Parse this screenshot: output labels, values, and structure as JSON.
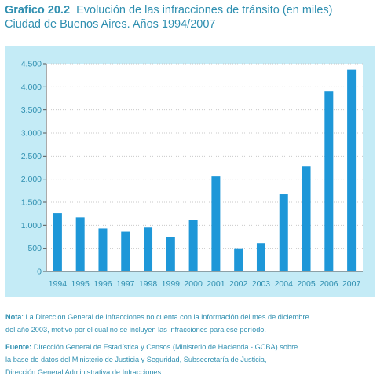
{
  "header": {
    "figure_number": "Grafico 20.2",
    "title": "Evolución de las infracciones de tránsito (en miles)",
    "subtitle": "Ciudad de Buenos Aires. Años 1994/2007"
  },
  "chart_data": {
    "type": "bar",
    "title": "Evolución de las infracciones de tránsito (en miles)",
    "subtitle": "Ciudad de Buenos Aires. Años 1994/2007",
    "xlabel": "",
    "ylabel": "",
    "categories": [
      "1994",
      "1995",
      "1996",
      "1997",
      "1998",
      "1999",
      "2000",
      "2001",
      "2002",
      "2003",
      "2004",
      "2005",
      "2006",
      "2007"
    ],
    "values": [
      1260,
      1170,
      930,
      860,
      950,
      750,
      1120,
      2060,
      500,
      610,
      1670,
      2280,
      3900,
      4370
    ],
    "ylim": [
      0,
      4500
    ],
    "yticks": [
      0,
      500,
      1000,
      1500,
      2000,
      2500,
      3000,
      3500,
      4000,
      4500
    ],
    "ytick_labels": [
      "0",
      "500",
      "1.000",
      "1.500",
      "2.000",
      "2.500",
      "3.000",
      "3.500",
      "4.000",
      "4.500"
    ],
    "grid": true,
    "colors": {
      "bar": "#1e97d8",
      "panel_background": "#c4ebf6",
      "plot_background": "#ffffff",
      "text": "#2f8fb0"
    }
  },
  "footer": {
    "note_label": "Nota",
    "note_lines": [
      ": La Dirección General de Infracciones no cuenta con la información del mes de diciembre",
      "del  año 2003, motivo por el cual no se incluyen las infracciones para ese período."
    ],
    "source_label": "Fuente:",
    "source_lines": [
      " Dirección General de Estadística y Censos (Ministerio de Hacienda - GCBA) sobre",
      "la base de datos del Ministerio de Justicia y Seguridad, Subsecretaría de Justicia,",
      "Dirección General Administrativa de Infracciones."
    ]
  }
}
